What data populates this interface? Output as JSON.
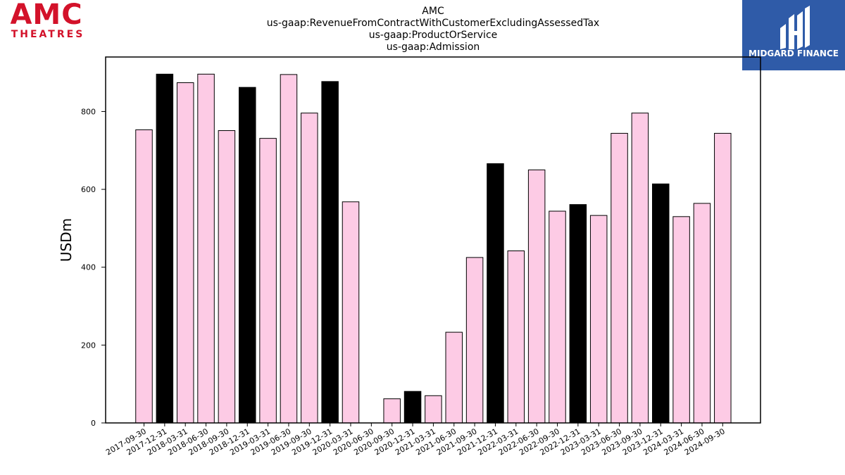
{
  "logos": {
    "amc": {
      "wordmark": "AMC",
      "subtitle": "THEATRES",
      "color": "#d3122a"
    },
    "midgard": {
      "name": "MIDGARD FINANCE",
      "background": "#2f5ba8"
    }
  },
  "chart_data": {
    "type": "bar",
    "title_lines": [
      "AMC",
      "us-gaap:RevenueFromContractWithCustomerExcludingAssessedTax",
      "us-gaap:ProductOrService",
      "us-gaap:Admission"
    ],
    "xlabel": "",
    "ylabel": "USDm",
    "ylim": [
      0,
      940
    ],
    "yticks": [
      0,
      200,
      400,
      600,
      800
    ],
    "grid": false,
    "legend": "none",
    "colors": {
      "quarter": "#fdcbe5",
      "year_end": "#000000",
      "edge": "#000000"
    },
    "categories": [
      "2017-09-30",
      "2017-12-31",
      "2018-03-31",
      "2018-06-30",
      "2018-09-30",
      "2018-12-31",
      "2019-03-31",
      "2019-06-30",
      "2019-09-30",
      "2019-12-31",
      "2020-03-31",
      "2020-06-30",
      "2020-09-30",
      "2020-12-31",
      "2021-03-31",
      "2021-06-30",
      "2021-09-30",
      "2021-12-31",
      "2022-03-31",
      "2022-06-30",
      "2022-09-30",
      "2022-12-31",
      "2023-03-31",
      "2023-06-30",
      "2023-09-30",
      "2023-12-31",
      "2024-03-31",
      "2024-06-30",
      "2024-09-30"
    ],
    "values": [
      753,
      896,
      874,
      896,
      751,
      862,
      731,
      895,
      796,
      877,
      568,
      0,
      62,
      81,
      70,
      233,
      425,
      666,
      442,
      650,
      544,
      561,
      533,
      744,
      796,
      614,
      530,
      564,
      744
    ],
    "year_end": [
      false,
      true,
      false,
      false,
      false,
      true,
      false,
      false,
      false,
      true,
      false,
      false,
      false,
      true,
      false,
      false,
      false,
      true,
      false,
      false,
      false,
      true,
      false,
      false,
      false,
      true,
      false,
      false,
      false
    ]
  }
}
